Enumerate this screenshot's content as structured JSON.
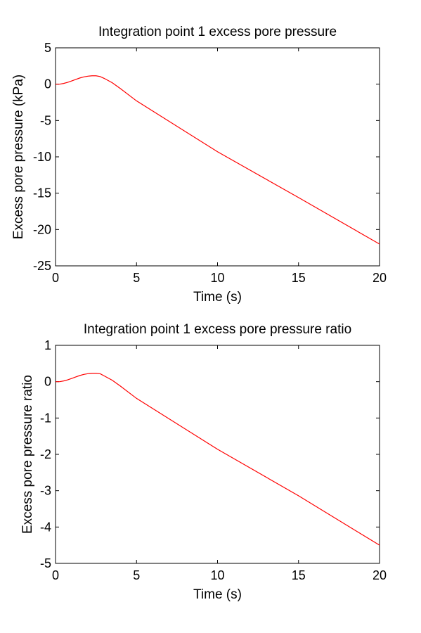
{
  "chart_data": [
    {
      "type": "line",
      "title": "Integration point 1 excess pore pressure",
      "xlabel": "Time (s)",
      "ylabel": "Excess pore pressure (kPa)",
      "xlim": [
        0,
        20
      ],
      "ylim": [
        -25,
        5
      ],
      "xticks": [
        "0",
        "5",
        "10",
        "15",
        "20"
      ],
      "yticks": [
        "5",
        "0",
        "-5",
        "-10",
        "-15",
        "-20",
        "-25"
      ],
      "grid": false,
      "series": [
        {
          "color": "#ff0000",
          "x": [
            0,
            0.25,
            0.5,
            0.75,
            1.0,
            1.25,
            1.5,
            1.75,
            2.0,
            2.25,
            2.5,
            2.75,
            3.0,
            3.25,
            3.5,
            4,
            5,
            10,
            15,
            20
          ],
          "y": [
            0,
            0.0,
            0.1,
            0.25,
            0.45,
            0.65,
            0.85,
            1.0,
            1.1,
            1.15,
            1.15,
            1.05,
            0.8,
            0.5,
            0.2,
            -0.6,
            -2.3,
            -9.3,
            -15.6,
            -22.0
          ]
        }
      ]
    },
    {
      "type": "line",
      "title": "Integration point 1 excess pore pressure ratio",
      "xlabel": "Time (s)",
      "ylabel": "Excess pore pressure ratio",
      "xlim": [
        0,
        20
      ],
      "ylim": [
        -5,
        1
      ],
      "xticks": [
        "0",
        "5",
        "10",
        "15",
        "20"
      ],
      "yticks": [
        "1",
        "0",
        "-1",
        "-2",
        "-3",
        "-4",
        "-5"
      ],
      "grid": false,
      "series": [
        {
          "color": "#ff0000",
          "x": [
            0,
            0.25,
            0.5,
            0.75,
            1.0,
            1.25,
            1.5,
            1.75,
            2.0,
            2.25,
            2.5,
            2.75,
            3.0,
            3.25,
            3.5,
            4,
            5,
            10,
            15,
            20
          ],
          "y": [
            0,
            0.0,
            0.02,
            0.05,
            0.09,
            0.13,
            0.17,
            0.2,
            0.22,
            0.23,
            0.23,
            0.22,
            0.16,
            0.1,
            0.04,
            -0.12,
            -0.46,
            -1.86,
            -3.14,
            -4.5
          ]
        }
      ]
    }
  ]
}
